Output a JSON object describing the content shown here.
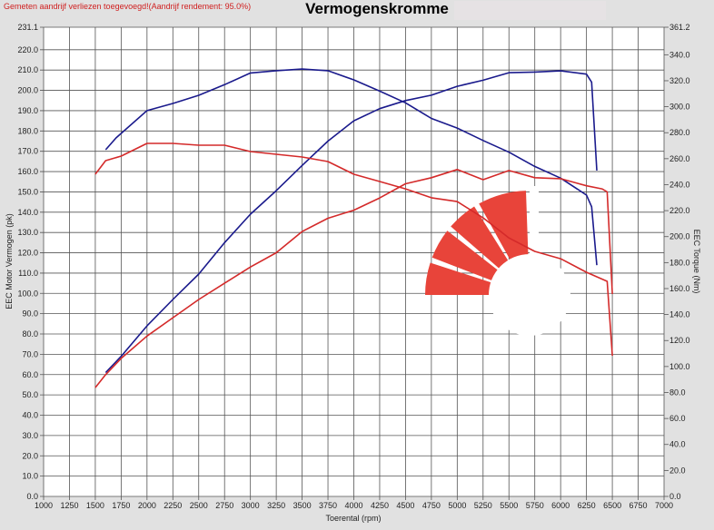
{
  "header": {
    "note": "Gemeten aandrijf verliezen toegevoegd!(Aandrijf rendement: 95.0%)",
    "title": "Vermogenskromme"
  },
  "colors": {
    "run1": "#1a1a8c",
    "run2": "#d42a2a",
    "logo": "#e8443a"
  },
  "watermark": {
    "icon": "red-gauge-logo"
  },
  "chart_data": {
    "type": "line",
    "title": "Vermogenskromme",
    "xlabel": "Toerental (rpm)",
    "ylabel": "EEC Motor Vermogen (pk)",
    "y2label": "EEC Torque (Nm)",
    "xlim": [
      1000,
      7000
    ],
    "ylim": [
      0,
      231.1
    ],
    "y2lim": [
      0,
      361.2
    ],
    "grid": true,
    "xticks": [
      "1000",
      "1250",
      "1500",
      "1750",
      "2000",
      "2250",
      "2500",
      "2750",
      "3000",
      "3250",
      "3500",
      "3750",
      "4000",
      "4250",
      "4500",
      "4750",
      "5000",
      "5250",
      "5500",
      "5750",
      "6000",
      "6250",
      "6500",
      "6750",
      "7000"
    ],
    "yticks": [
      "0.0",
      "10.0",
      "20.0",
      "30.0",
      "40.0",
      "50.0",
      "60.0",
      "70.0",
      "80.0",
      "90.0",
      "100.0",
      "110.0",
      "120.0",
      "130.0",
      "140.0",
      "150.0",
      "160.0",
      "170.0",
      "180.0",
      "190.0",
      "200.0",
      "210.0",
      "220.0",
      "231.1"
    ],
    "y2ticks": [
      "0.0",
      "20.0",
      "40.0",
      "60.0",
      "80.0",
      "100.0",
      "120.0",
      "140.0",
      "160.0",
      "180.0",
      "200.0",
      "220.0",
      "240.0",
      "260.0",
      "280.0",
      "300.0",
      "320.0",
      "340.0",
      "361.2"
    ],
    "series": [
      {
        "color": "#1a1a8c",
        "axis": "left",
        "x": [
          1600,
          1750,
          2000,
          2250,
          2500,
          2750,
          3000,
          3250,
          3500,
          3750,
          4000,
          4250,
          4500,
          4750,
          5000,
          5250,
          5500,
          5750,
          6000,
          6250,
          6300,
          6350
        ],
        "y": [
          61,
          69,
          84,
          97,
          109.5,
          125,
          139,
          150.6,
          163,
          175,
          185,
          191,
          195,
          197.6,
          202,
          205,
          208.7,
          209,
          209.6,
          208,
          204,
          160.5
        ]
      },
      {
        "color": "#1a1a8c",
        "axis": "right",
        "x": [
          1600,
          1700,
          2000,
          2250,
          2500,
          2750,
          3000,
          3250,
          3500,
          3750,
          4000,
          4250,
          4500,
          4750,
          5000,
          5250,
          5500,
          5750,
          6000,
          6250,
          6300,
          6350
        ],
        "y": [
          266.9,
          276,
          297,
          302.5,
          308.8,
          317,
          326,
          327.7,
          329,
          327.7,
          320.7,
          312,
          303,
          291,
          283.6,
          274,
          265,
          254,
          245,
          232,
          223,
          178
        ]
      },
      {
        "color": "#d42a2a",
        "axis": "left",
        "x": [
          1500,
          1600,
          1750,
          2000,
          2250,
          2500,
          2750,
          3000,
          3250,
          3500,
          3750,
          4000,
          4250,
          4500,
          4750,
          5000,
          5250,
          5500,
          5750,
          6000,
          6250,
          6400,
          6450,
          6500
        ],
        "y": [
          53.6,
          60,
          68,
          79,
          88,
          97,
          105,
          113,
          120,
          130.5,
          137,
          141,
          147,
          154,
          157,
          161,
          156,
          160.5,
          157,
          156.5,
          153,
          151.5,
          150,
          99.7
        ]
      },
      {
        "color": "#d42a2a",
        "axis": "right",
        "x": [
          1500,
          1600,
          1750,
          2000,
          2250,
          2500,
          2750,
          3000,
          3250,
          3500,
          3750,
          4000,
          4250,
          4500,
          4750,
          5000,
          5250,
          5500,
          5750,
          6000,
          6250,
          6450,
          6500
        ],
        "y": [
          248,
          258.5,
          262,
          271.8,
          271.8,
          270.4,
          270.4,
          265.5,
          263.4,
          261.3,
          257.8,
          248,
          242.4,
          236.8,
          229.9,
          227,
          214.5,
          199,
          188.6,
          183,
          172.6,
          165.6,
          108.3
        ]
      }
    ]
  }
}
